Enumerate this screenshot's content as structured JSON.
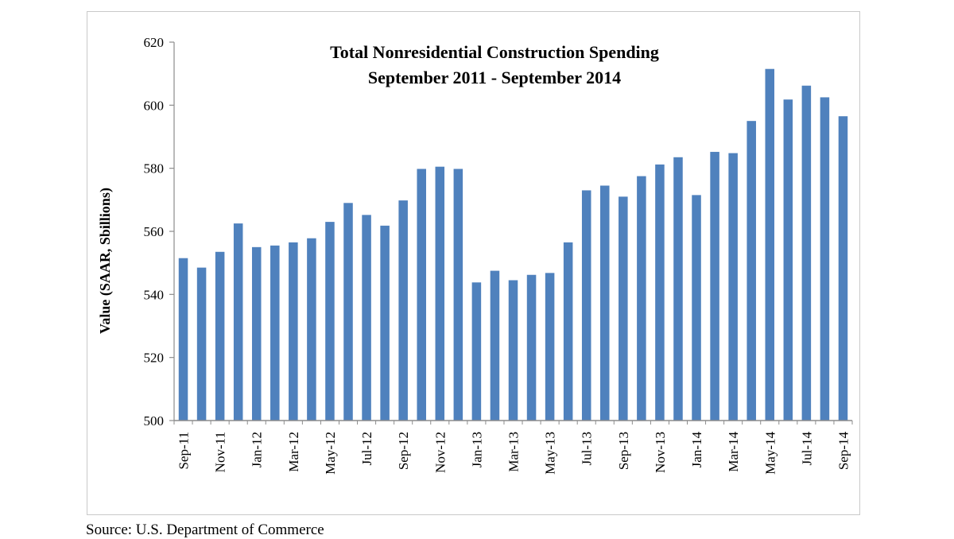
{
  "chart_data": {
    "type": "bar",
    "title": "Total Nonresidential Construction Spending",
    "subtitle": "September 2011 - September 2014",
    "xlabel": "",
    "ylabel": "Value (SAAR, Sbillions)",
    "ylim": [
      500,
      620
    ],
    "yticks": [
      500,
      520,
      540,
      560,
      580,
      600,
      620
    ],
    "grid": false,
    "legend": "none",
    "bar_color": "#4f81bd",
    "categories": [
      "Sep-11",
      "Oct-11",
      "Nov-11",
      "Dec-11",
      "Jan-12",
      "Feb-12",
      "Mar-12",
      "Apr-12",
      "May-12",
      "Jun-12",
      "Jul-12",
      "Aug-12",
      "Sep-12",
      "Oct-12",
      "Nov-12",
      "Dec-12",
      "Jan-13",
      "Feb-13",
      "Mar-13",
      "Apr-13",
      "May-13",
      "Jun-13",
      "Jul-13",
      "Aug-13",
      "Sep-13",
      "Oct-13",
      "Nov-13",
      "Dec-13",
      "Jan-14",
      "Feb-14",
      "Mar-14",
      "Apr-14",
      "May-14",
      "Jun-14",
      "Jul-14",
      "Aug-14",
      "Sep-14"
    ],
    "tick_labels": [
      "Sep-11",
      "Nov-11",
      "Jan-12",
      "Mar-12",
      "May-12",
      "Jul-12",
      "Sep-12",
      "Nov-12",
      "Jan-13",
      "Mar-13",
      "May-13",
      "Jul-13",
      "Sep-13",
      "Nov-13",
      "Jan-14",
      "Mar-14",
      "May-14",
      "Jul-14",
      "Sep-14"
    ],
    "values": [
      551.5,
      548.5,
      553.5,
      562.5,
      555,
      555.5,
      556.5,
      557.8,
      563,
      569,
      565.2,
      561.8,
      569.8,
      579.8,
      580.5,
      579.8,
      543.8,
      547.5,
      544.5,
      546.2,
      546.8,
      556.5,
      573,
      574.5,
      571,
      577.5,
      581.2,
      583.5,
      571.5,
      585.2,
      584.8,
      595,
      611.5,
      601.8,
      606.2,
      602.5,
      596.5
    ]
  },
  "source": "Source:  U.S. Department of Commerce"
}
